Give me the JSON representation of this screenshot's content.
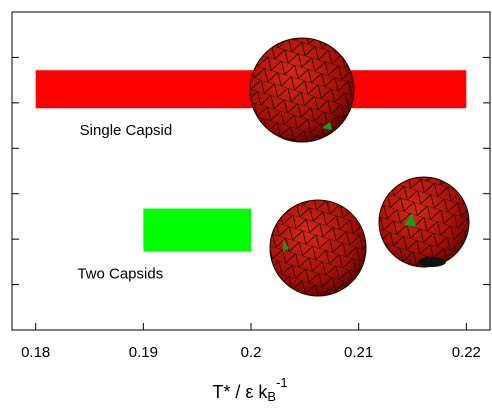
{
  "chart_data": {
    "type": "range-bar",
    "xlabel": {
      "main": "T* / ε k",
      "sub": "B",
      "sup": "-1"
    },
    "xlim": [
      0.1778,
      0.2222
    ],
    "xticks": [
      0.18,
      0.19,
      0.2,
      0.21,
      0.22
    ],
    "ylim": [
      0,
      7
    ],
    "yticks": [
      1,
      2,
      3,
      4,
      5,
      6
    ],
    "series": [
      {
        "name": "Single Capsid",
        "color": "#ff0000",
        "start": 0.18,
        "end": 0.22,
        "y": 5.3
      },
      {
        "name": "Two Capsids",
        "color": "#00ff00",
        "start": 0.19,
        "end": 0.2,
        "y": 2.2
      }
    ]
  }
}
